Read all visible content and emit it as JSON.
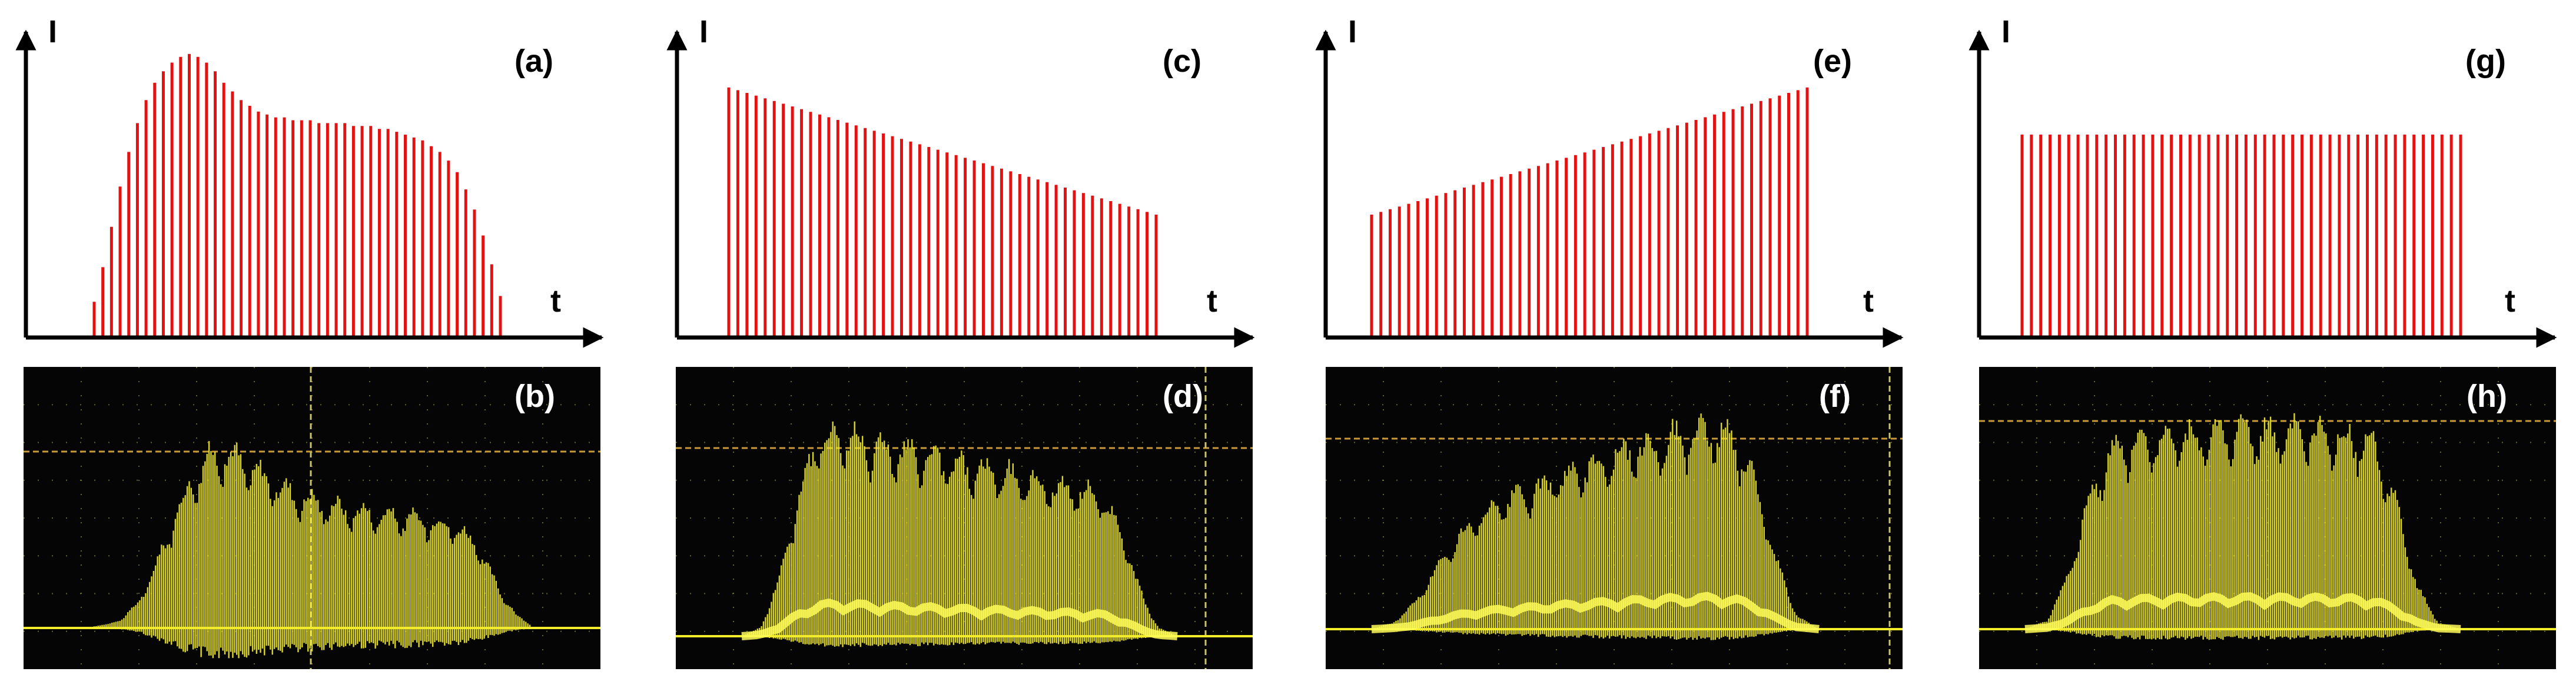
{
  "figure": {
    "colors": {
      "pulse": "#e31212",
      "axis": "#000000",
      "scope_bg": "#050505",
      "scope_trace": "#f2ec2a",
      "scope_grid": "#8a8a3a",
      "scope_label": "#ffffff"
    }
  },
  "chart_data": [
    {
      "id": "a",
      "type": "bar",
      "label": "(a)",
      "ylabel": "I",
      "xlabel": "t",
      "ylim": [
        0,
        100
      ],
      "n_pulses": 48,
      "envelope": "rise-peak-plateau-fall",
      "values": [
        12,
        24,
        38,
        52,
        64,
        74,
        82,
        88,
        92,
        95,
        97,
        98,
        97,
        95,
        92,
        88,
        85,
        82,
        80,
        78,
        77,
        76,
        76,
        75,
        75,
        75,
        74,
        74,
        74,
        74,
        73,
        73,
        73,
        72,
        72,
        71,
        70,
        69,
        68,
        66,
        64,
        61,
        57,
        51,
        44,
        35,
        25,
        14
      ]
    },
    {
      "id": "c",
      "type": "bar",
      "label": "(c)",
      "ylabel": "I",
      "xlabel": "t",
      "ylim": [
        0,
        100
      ],
      "n_pulses": 48,
      "envelope": "linear-decreasing",
      "start": 92,
      "end": 45
    },
    {
      "id": "e",
      "type": "bar",
      "label": "(e)",
      "ylabel": "I",
      "xlabel": "t",
      "ylim": [
        0,
        100
      ],
      "n_pulses": 48,
      "envelope": "linear-increasing",
      "start": 45,
      "end": 92
    },
    {
      "id": "g",
      "type": "bar",
      "label": "(g)",
      "ylabel": "I",
      "xlabel": "t",
      "ylim": [
        0,
        100
      ],
      "n_pulses": 48,
      "envelope": "constant",
      "start": 73,
      "end": 73
    },
    {
      "id": "b",
      "type": "line",
      "label": "(b)",
      "kind": "oscilloscope",
      "shape": "rise-peak-decay",
      "ylim": [
        0,
        100
      ],
      "envelope": [
        1,
        2,
        5,
        12,
        26,
        44,
        62,
        78,
        88,
        92,
        90,
        85,
        80,
        75,
        71,
        68,
        66,
        64,
        62,
        61,
        60,
        59,
        58,
        57,
        56,
        55,
        52,
        45,
        32,
        18,
        7,
        2
      ]
    },
    {
      "id": "d",
      "type": "line",
      "label": "(d)",
      "kind": "oscilloscope",
      "shape": "decreasing",
      "ylim": [
        0,
        100
      ],
      "envelope": [
        0,
        4,
        28,
        66,
        92,
        96,
        94,
        90,
        88,
        86,
        84,
        82,
        80,
        78,
        76,
        74,
        72,
        70,
        68,
        65,
        50,
        22,
        4,
        0
      ]
    },
    {
      "id": "f",
      "type": "line",
      "label": "(f)",
      "kind": "oscilloscope",
      "shape": "increasing",
      "ylim": [
        0,
        100
      ],
      "envelope": [
        0,
        3,
        12,
        28,
        42,
        52,
        58,
        63,
        67,
        72,
        76,
        80,
        84,
        87,
        90,
        92,
        94,
        90,
        70,
        32,
        6,
        0
      ]
    },
    {
      "id": "h",
      "type": "line",
      "label": "(h)",
      "kind": "oscilloscope",
      "shape": "flat",
      "ylim": [
        0,
        100
      ],
      "envelope": [
        0,
        4,
        26,
        64,
        84,
        88,
        90,
        91,
        92,
        92,
        93,
        93,
        92,
        92,
        91,
        90,
        86,
        60,
        20,
        3,
        0
      ]
    }
  ]
}
